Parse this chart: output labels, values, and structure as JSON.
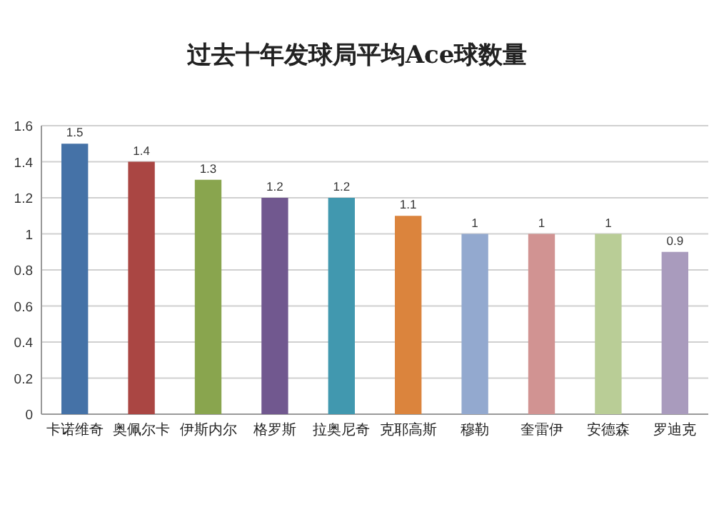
{
  "chart_data": {
    "type": "bar",
    "title": "过去十年发球局平均Ace球数量",
    "categories": [
      "卡诺维奇",
      "奥佩尔卡",
      "伊斯内尔",
      "格罗斯",
      "拉奥尼奇",
      "克耶高斯",
      "穆勒",
      "奎雷伊",
      "安德森",
      "罗迪克"
    ],
    "values": [
      1.5,
      1.4,
      1.3,
      1.2,
      1.2,
      1.1,
      1,
      1,
      1,
      0.9
    ],
    "colors": [
      "#4572a7",
      "#aa4643",
      "#89a54e",
      "#71588f",
      "#4198af",
      "#db843d",
      "#93a9cf",
      "#d19392",
      "#b9cd96",
      "#a99bbd"
    ],
    "ylim": [
      0,
      1.6
    ],
    "yticks": [
      0,
      0.2,
      0.4,
      0.6,
      0.8,
      1,
      1.2,
      1.4,
      1.6
    ],
    "grid": "y",
    "data_labels": true
  }
}
